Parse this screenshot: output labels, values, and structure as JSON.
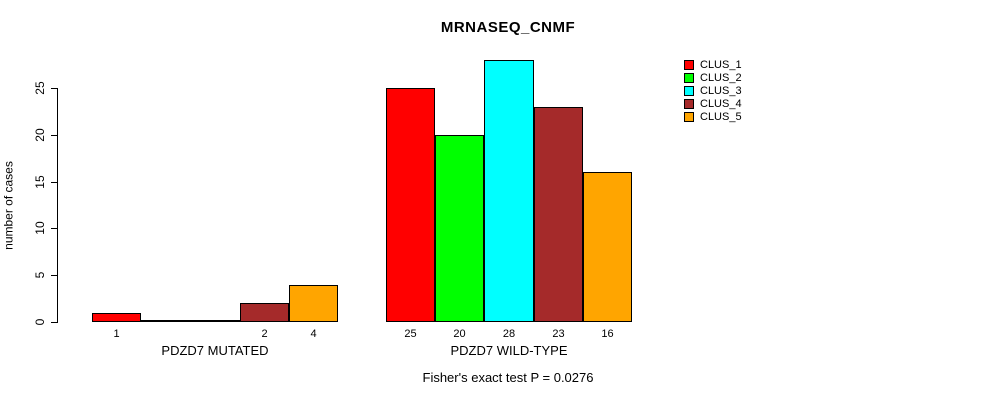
{
  "chart_data": {
    "type": "bar",
    "title": "MRNASEQ_CNMF",
    "ylabel": "number of cases",
    "xlabel": "",
    "ylim": [
      0,
      28
    ],
    "yticks": [
      "0",
      "5",
      "10",
      "15",
      "20",
      "25"
    ],
    "grid": false,
    "legend_position": "top-right",
    "series": [
      "CLUS_1",
      "CLUS_2",
      "CLUS_3",
      "CLUS_4",
      "CLUS_5"
    ],
    "colors": [
      "#FF0000",
      "#00FF00",
      "#00FFFF",
      "#A52A2A",
      "#FFA500"
    ],
    "groups": [
      {
        "label": "PDZD7 MUTATED",
        "values": [
          1,
          0,
          0,
          2,
          4
        ]
      },
      {
        "label": "PDZD7 WILD-TYPE",
        "values": [
          25,
          20,
          28,
          23,
          16
        ]
      }
    ],
    "bar_value_labels_shown_for_nonzero_only": true,
    "caption": "Fisher's exact test P = 0.0276",
    "text_color": "#000000",
    "background_color": "#ffffff"
  }
}
